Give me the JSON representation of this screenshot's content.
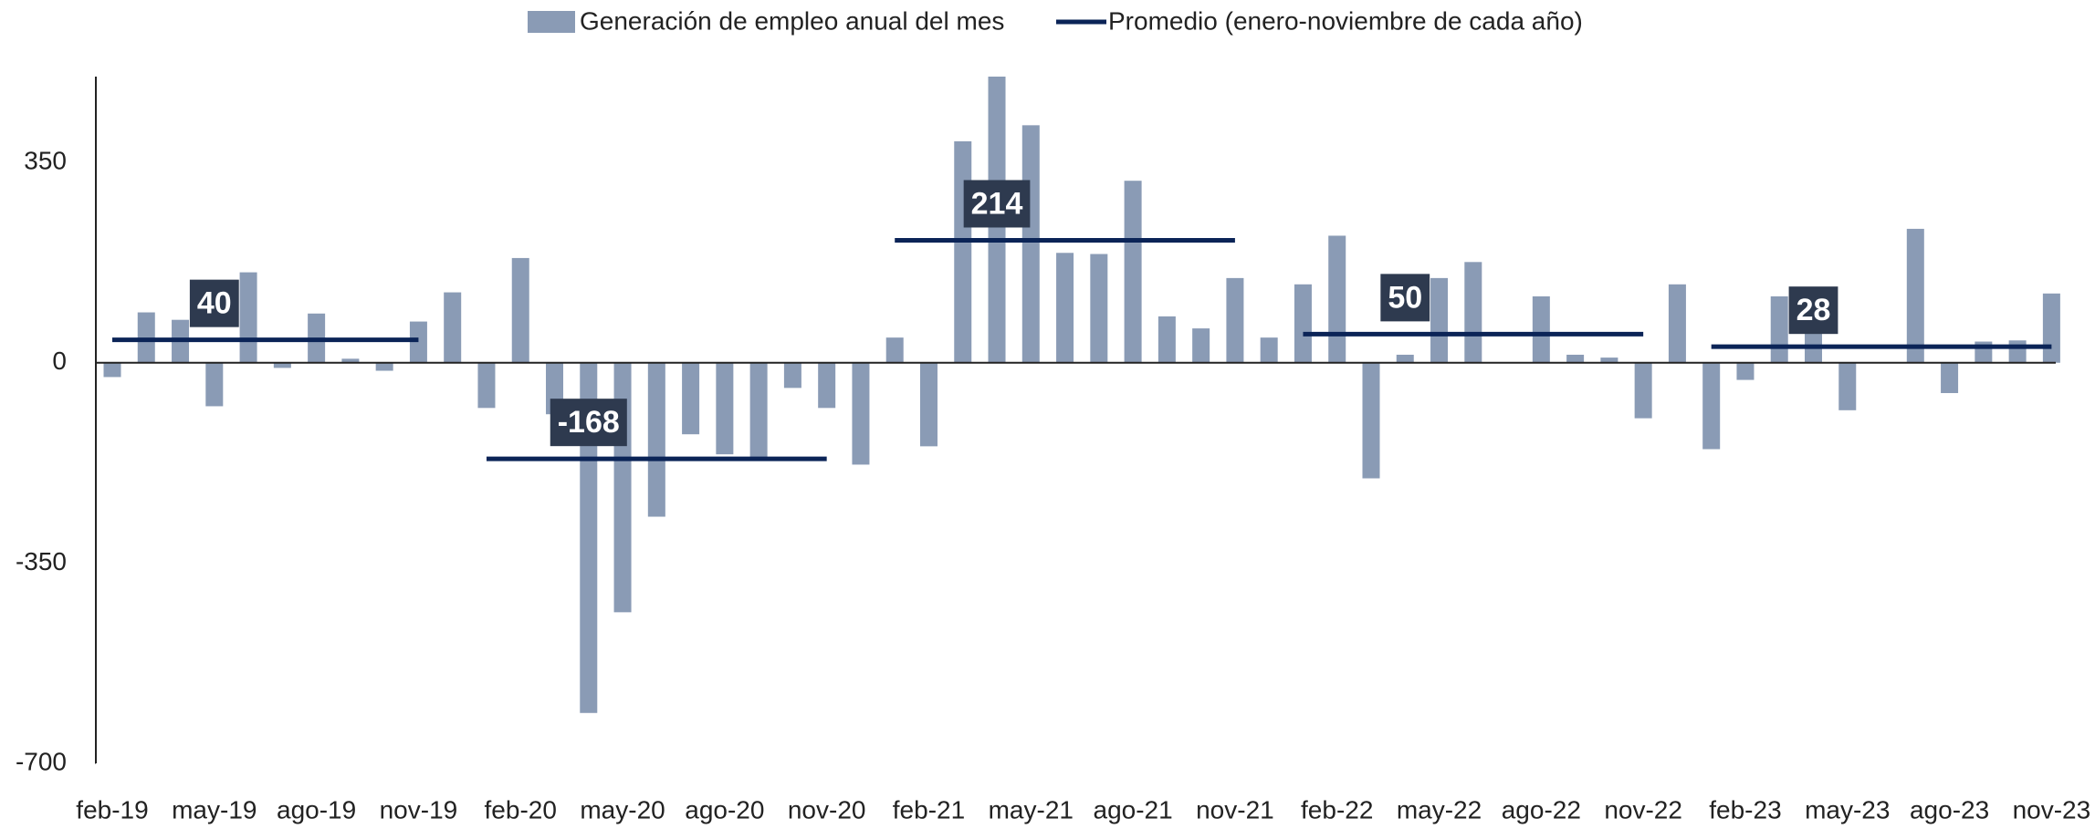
{
  "chart_data": {
    "type": "bar",
    "categories": [
      "feb-19",
      null,
      null,
      "may-19",
      null,
      null,
      "ago-19",
      null,
      null,
      "nov-19",
      null,
      null,
      "feb-20",
      null,
      null,
      "may-20",
      null,
      null,
      "ago-20",
      null,
      null,
      "nov-20",
      null,
      null,
      "feb-21",
      null,
      null,
      "may-21",
      null,
      null,
      "ago-21",
      null,
      null,
      "nov-21",
      null,
      null,
      "feb-22",
      null,
      null,
      "may-22",
      null,
      null,
      "ago-22",
      null,
      null,
      "nov-22",
      null,
      null,
      "feb-23",
      null,
      null,
      "may-23",
      null,
      null,
      "ago-23",
      null,
      null,
      "nov-23"
    ],
    "series": [
      {
        "name": "Generación de empleo anual del mes",
        "type": "bar",
        "color": "#8a9bb5",
        "values": [
          -25,
          88,
          75,
          -76,
          158,
          -9,
          86,
          7,
          -14,
          72,
          123,
          -79,
          183,
          -90,
          -612,
          -436,
          -269,
          -125,
          -160,
          -165,
          -44,
          -79,
          -178,
          44,
          -146,
          387,
          500,
          415,
          192,
          190,
          318,
          81,
          60,
          148,
          44,
          137,
          222,
          -202,
          14,
          148,
          176,
          0,
          116,
          14,
          9,
          -97,
          137,
          -151,
          -30,
          116,
          79,
          -83,
          0,
          234,
          -53,
          37,
          39,
          121
        ]
      },
      {
        "name": "Promedio (enero-noviembre de cada año)",
        "type": "line",
        "color": "#0b2457",
        "values": [
          40,
          40,
          40,
          40,
          40,
          40,
          40,
          40,
          40,
          40,
          null,
          -168,
          -168,
          -168,
          -168,
          -168,
          -168,
          -168,
          -168,
          -168,
          -168,
          -168,
          null,
          214,
          214,
          214,
          214,
          214,
          214,
          214,
          214,
          214,
          214,
          214,
          null,
          50,
          50,
          50,
          50,
          50,
          50,
          50,
          50,
          50,
          50,
          50,
          null,
          28,
          28,
          28,
          28,
          28,
          28,
          28,
          28,
          28,
          28,
          28
        ]
      }
    ],
    "ylim": [
      -700,
      500
    ],
    "yticks": [
      -700,
      -350,
      0,
      350
    ],
    "grid": false
  }
}
